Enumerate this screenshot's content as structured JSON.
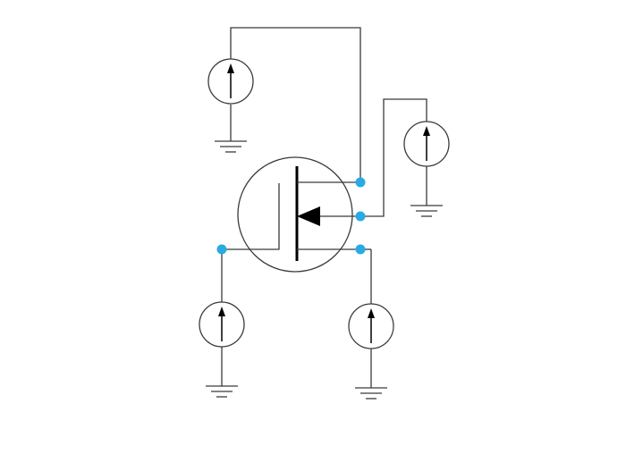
{
  "diagram": {
    "type": "schematic",
    "title": "",
    "component": "mosfet-with-four-current-sources",
    "colors": {
      "wire": "#3a3a3a",
      "symbol": "#000000",
      "node": "#29abe2",
      "background": "#ffffff"
    },
    "nodes": [
      {
        "id": "drain-node",
        "terminal": "drain"
      },
      {
        "id": "body-node",
        "terminal": "body"
      },
      {
        "id": "source-node",
        "terminal": "source"
      },
      {
        "id": "gate-node",
        "terminal": "gate"
      }
    ],
    "current_sources": [
      {
        "id": "drain-source",
        "direction": "up",
        "connected_to": "drain"
      },
      {
        "id": "body-source",
        "direction": "up",
        "connected_to": "body"
      },
      {
        "id": "gate-source",
        "direction": "up",
        "connected_to": "gate"
      },
      {
        "id": "source-terminal-source",
        "direction": "up",
        "connected_to": "source"
      }
    ],
    "grounds": 4
  }
}
